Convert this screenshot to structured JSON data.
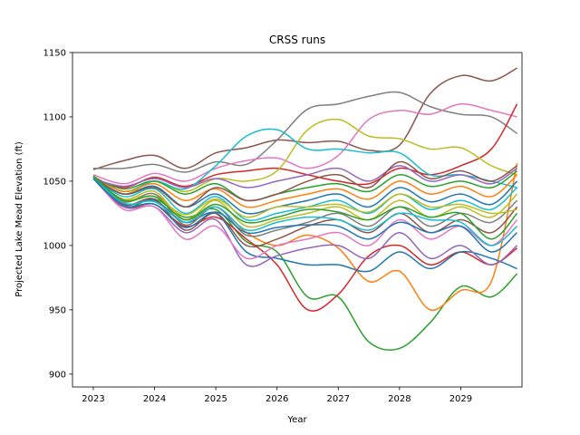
{
  "chart_data": {
    "type": "line",
    "title": "CRSS runs",
    "xlabel": "Year",
    "ylabel": "Projected Lake Mead Elevation (ft)",
    "xlim": [
      2022.66,
      2030.0
    ],
    "ylim": [
      890,
      1150
    ],
    "xticks": [
      "2023",
      "2024",
      "2025",
      "2026",
      "2027",
      "2028",
      "2029"
    ],
    "yticks": [
      "900",
      "950",
      "1000",
      "1050",
      "1100",
      "1150"
    ],
    "grid": false,
    "legend": "none",
    "x": [
      2023.0,
      2023.5,
      2024.0,
      2024.5,
      2025.0,
      2025.5,
      2026.0,
      2026.5,
      2027.0,
      2027.5,
      2028.0,
      2028.5,
      2029.0,
      2029.5,
      2029.92
    ],
    "series": [
      {
        "color": "#8c564b",
        "values": [
          1059,
          1066,
          1070,
          1060,
          1072,
          1076,
          1082,
          1080,
          1081,
          1074,
          1078,
          1118,
          1132,
          1128,
          1138
        ]
      },
      {
        "color": "#7f7f7f",
        "values": [
          1060,
          1060,
          1063,
          1057,
          1065,
          1063,
          1082,
          1106,
          1110,
          1116,
          1119,
          1108,
          1102,
          1100,
          1087
        ]
      },
      {
        "color": "#e377c2",
        "values": [
          1055,
          1048,
          1056,
          1050,
          1060,
          1066,
          1068,
          1060,
          1070,
          1098,
          1105,
          1102,
          1110,
          1105,
          1100
        ]
      },
      {
        "color": "#d62728",
        "values": [
          1052,
          1045,
          1053,
          1046,
          1055,
          1058,
          1060,
          1055,
          1050,
          1048,
          1060,
          1055,
          1062,
          1075,
          1110
        ]
      },
      {
        "color": "#bcbd22",
        "values": [
          1053,
          1040,
          1050,
          1042,
          1052,
          1050,
          1058,
          1090,
          1098,
          1085,
          1083,
          1075,
          1076,
          1062,
          1055
        ]
      },
      {
        "color": "#17becf",
        "values": [
          1054,
          1042,
          1050,
          1044,
          1062,
          1085,
          1090,
          1075,
          1075,
          1072,
          1072,
          1055,
          1055,
          1050,
          1045
        ]
      },
      {
        "color": "#2ca02c",
        "values": [
          1052,
          1030,
          1036,
          1022,
          1028,
          1003,
          995,
          960,
          960,
          925,
          920,
          940,
          968,
          960,
          978
        ]
      },
      {
        "color": "#ff7f0e",
        "values": [
          1053,
          1035,
          1040,
          1020,
          1030,
          1010,
          1000,
          1008,
          998,
          972,
          980,
          950,
          965,
          972,
          1064
        ]
      },
      {
        "color": "#d62728",
        "values": [
          1052,
          1030,
          1032,
          1015,
          1022,
          1005,
          985,
          950,
          962,
          992,
          1000,
          985,
          995,
          985,
          998
        ]
      },
      {
        "color": "#1f77b4",
        "values": [
          1052,
          1032,
          1035,
          1018,
          1025,
          995,
          990,
          985,
          985,
          980,
          995,
          982,
          995,
          990,
          982
        ]
      },
      {
        "color": "#9467bd",
        "values": [
          1053,
          1030,
          1030,
          1010,
          1020,
          985,
          992,
          998,
          1000,
          990,
          1010,
          990,
          1000,
          985,
          1000
        ]
      },
      {
        "color": "#e377c2",
        "values": [
          1053,
          1028,
          1030,
          1005,
          1015,
          990,
          1000,
          1005,
          1010,
          1000,
          1020,
          1005,
          1015,
          1000,
          1020
        ]
      },
      {
        "color": "#8c564b",
        "values": [
          1054,
          1032,
          1036,
          1012,
          1025,
          1000,
          1005,
          1015,
          1020,
          1010,
          1025,
          1010,
          1020,
          1010,
          1030
        ]
      },
      {
        "color": "#7f7f7f",
        "values": [
          1053,
          1034,
          1040,
          1016,
          1030,
          1008,
          1012,
          1018,
          1025,
          1015,
          1030,
          1015,
          1025,
          1018,
          1035
        ]
      },
      {
        "color": "#bcbd22",
        "values": [
          1052,
          1036,
          1042,
          1020,
          1035,
          1015,
          1020,
          1025,
          1030,
          1020,
          1035,
          1022,
          1030,
          1022,
          1040
        ]
      },
      {
        "color": "#17becf",
        "values": [
          1053,
          1038,
          1044,
          1025,
          1038,
          1020,
          1025,
          1030,
          1035,
          1025,
          1040,
          1028,
          1035,
          1028,
          1045
        ]
      },
      {
        "color": "#1f77b4",
        "values": [
          1052,
          1040,
          1046,
          1030,
          1040,
          1025,
          1030,
          1035,
          1040,
          1030,
          1045,
          1034,
          1040,
          1032,
          1050
        ]
      },
      {
        "color": "#ff7f0e",
        "values": [
          1054,
          1042,
          1048,
          1035,
          1044,
          1030,
          1035,
          1040,
          1044,
          1036,
          1050,
          1040,
          1046,
          1038,
          1055
        ]
      },
      {
        "color": "#2ca02c",
        "values": [
          1053,
          1044,
          1050,
          1040,
          1048,
          1035,
          1040,
          1045,
          1048,
          1042,
          1055,
          1046,
          1050,
          1045,
          1058
        ]
      },
      {
        "color": "#9467bd",
        "values": [
          1052,
          1046,
          1052,
          1045,
          1052,
          1045,
          1050,
          1055,
          1060,
          1050,
          1062,
          1050,
          1055,
          1048,
          1060
        ]
      },
      {
        "color": "#8c564b",
        "values": [
          1053,
          1040,
          1045,
          1030,
          1045,
          1035,
          1040,
          1050,
          1055,
          1045,
          1065,
          1052,
          1058,
          1050,
          1062
        ]
      },
      {
        "color": "#bcbd22",
        "values": [
          1052,
          1036,
          1038,
          1024,
          1036,
          1022,
          1030,
          1030,
          1032,
          1026,
          1040,
          1030,
          1032,
          1025,
          1028
        ]
      },
      {
        "color": "#17becf",
        "values": [
          1053,
          1033,
          1034,
          1018,
          1030,
          1012,
          1018,
          1022,
          1020,
          1012,
          1025,
          1020,
          1018,
          1000,
          1015
        ]
      },
      {
        "color": "#1f77b4",
        "values": [
          1052,
          1031,
          1032,
          1014,
          1026,
          1010,
          1014,
          1016,
          1015,
          1005,
          1018,
          1010,
          1015,
          995,
          1010
        ]
      },
      {
        "color": "#2ca02c",
        "values": [
          1054,
          1035,
          1038,
          1020,
          1032,
          1018,
          1022,
          1028,
          1026,
          1020,
          1030,
          1022,
          1025,
          1005,
          1025
        ]
      }
    ]
  }
}
